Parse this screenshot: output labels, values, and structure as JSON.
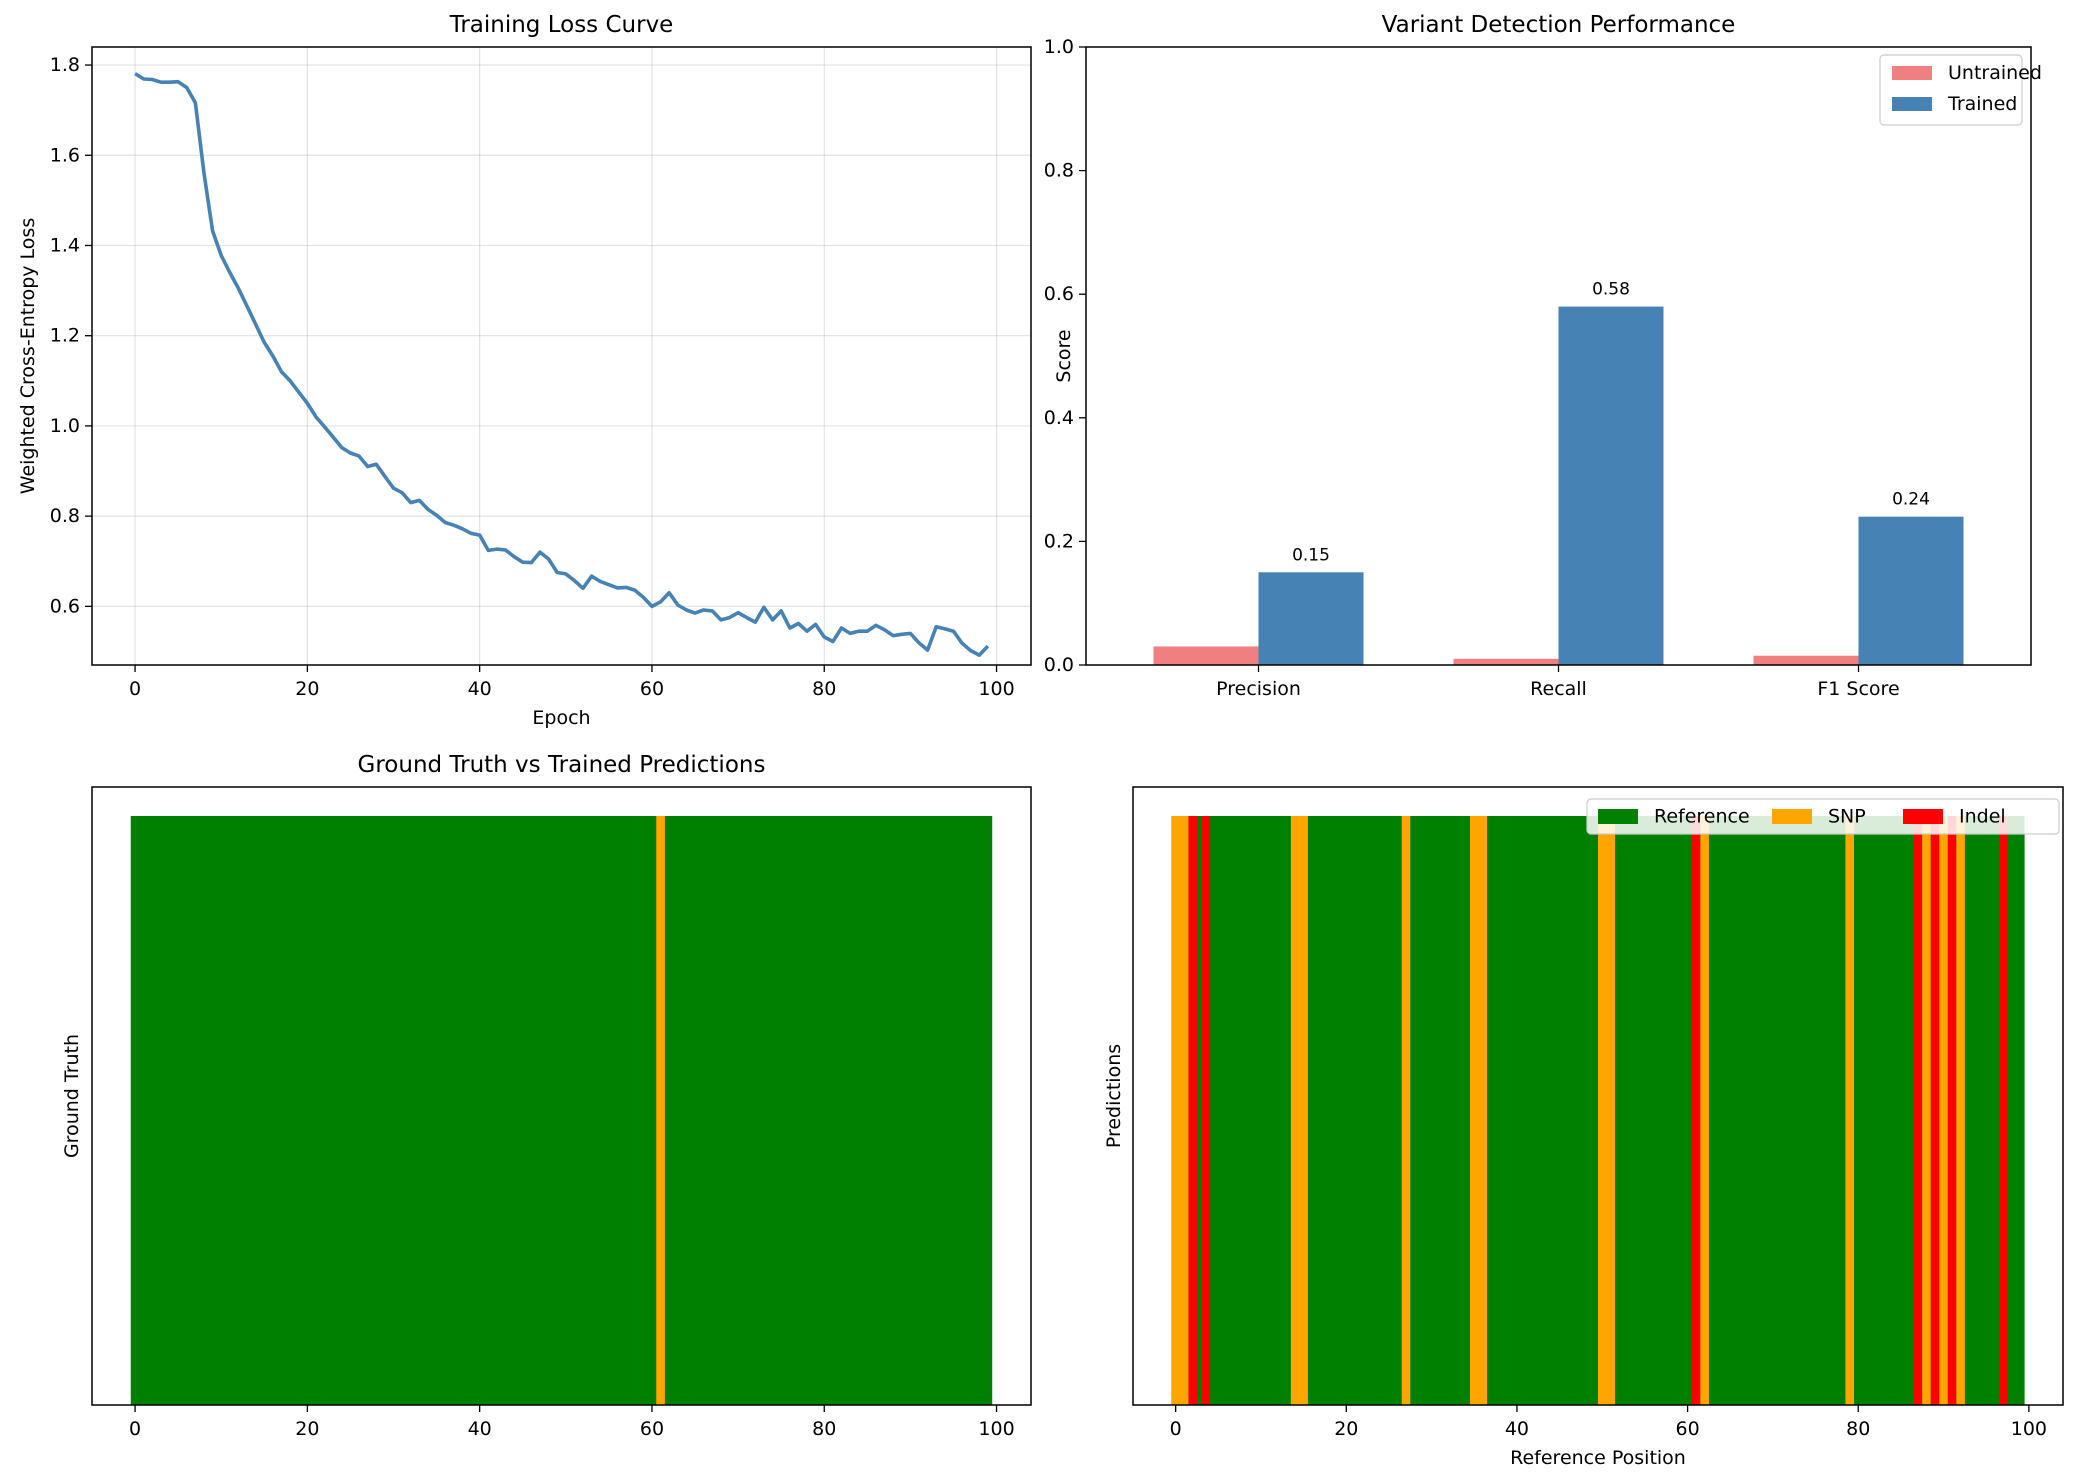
{
  "chart_data": [
    {
      "type": "line",
      "title": "Training Loss Curve",
      "xlabel": "Epoch",
      "ylabel": "Weighted Cross-Entropy Loss",
      "xlim": [
        -5,
        104
      ],
      "ylim": [
        0.47,
        1.84
      ],
      "xticks": [
        0,
        20,
        40,
        60,
        80,
        100
      ],
      "xtick_labels": [
        "0",
        "20",
        "40",
        "60",
        "80",
        "100"
      ],
      "yticks": [
        0.6,
        0.8,
        1.0,
        1.2,
        1.4,
        1.6,
        1.8
      ],
      "ytick_labels": [
        "0.6",
        "0.8",
        "1.0",
        "1.2",
        "1.4",
        "1.6",
        "1.8"
      ],
      "grid": true,
      "color": "#4682b4",
      "series": [
        {
          "x": [
            0,
            1,
            2,
            3,
            4,
            5,
            6,
            7,
            8,
            9,
            10,
            11,
            12,
            13,
            14,
            15,
            16,
            17,
            18,
            19,
            20,
            21,
            22,
            23,
            24,
            25,
            26,
            27,
            28,
            29,
            30,
            31,
            32,
            33,
            34,
            35,
            36,
            37,
            38,
            39,
            40,
            41,
            42,
            43,
            44,
            45,
            46,
            47,
            48,
            49,
            50,
            51,
            52,
            53,
            54,
            55,
            56,
            57,
            58,
            59,
            60,
            61,
            62,
            63,
            64,
            65,
            66,
            67,
            68,
            69,
            70,
            71,
            72,
            73,
            74,
            75,
            76,
            77,
            78,
            79,
            80,
            81,
            82,
            83,
            84,
            85,
            86,
            87,
            88,
            89,
            90,
            91,
            92,
            93,
            94,
            95,
            96,
            97,
            98,
            99
          ],
          "values": [
            1.781,
            1.769,
            1.768,
            1.762,
            1.762,
            1.763,
            1.75,
            1.716,
            1.56,
            1.432,
            1.378,
            1.34,
            1.305,
            1.265,
            1.225,
            1.185,
            1.155,
            1.12,
            1.1,
            1.075,
            1.05,
            1.02,
            0.998,
            0.975,
            0.952,
            0.94,
            0.933,
            0.91,
            0.915,
            0.888,
            0.862,
            0.852,
            0.83,
            0.835,
            0.815,
            0.802,
            0.786,
            0.78,
            0.772,
            0.762,
            0.758,
            0.724,
            0.727,
            0.725,
            0.71,
            0.698,
            0.697,
            0.72,
            0.705,
            0.675,
            0.672,
            0.657,
            0.64,
            0.667,
            0.655,
            0.648,
            0.641,
            0.642,
            0.636,
            0.62,
            0.6,
            0.61,
            0.63,
            0.603,
            0.592,
            0.585,
            0.592,
            0.59,
            0.57,
            0.575,
            0.586,
            0.575,
            0.565,
            0.598,
            0.57,
            0.59,
            0.552,
            0.562,
            0.545,
            0.56,
            0.532,
            0.522,
            0.552,
            0.54,
            0.545,
            0.545,
            0.558,
            0.548,
            0.535,
            0.538,
            0.54,
            0.519,
            0.503,
            0.555,
            0.55,
            0.545,
            0.518,
            0.502,
            0.492,
            0.512
          ]
        }
      ]
    },
    {
      "type": "bar",
      "title": "Variant Detection Performance",
      "xlabel": "",
      "ylabel": "Score",
      "ylim": [
        0,
        1.0
      ],
      "yticks": [
        0.0,
        0.2,
        0.4,
        0.6,
        0.8,
        1.0
      ],
      "ytick_labels": [
        "0.0",
        "0.2",
        "0.4",
        "0.6",
        "0.8",
        "1.0"
      ],
      "categories": [
        "Precision",
        "Recall",
        "F1 Score"
      ],
      "legend_position": "top-right",
      "series": [
        {
          "name": "Untrained",
          "values": [
            0.03,
            0.01,
            0.015
          ],
          "color": "#f08080",
          "labels": [
            "",
            "",
            ""
          ]
        },
        {
          "name": "Trained",
          "values": [
            0.15,
            0.58,
            0.24
          ],
          "color": "#4682b4",
          "labels": [
            "0.15",
            "0.58",
            "0.24"
          ]
        }
      ]
    },
    {
      "type": "heatmap",
      "title": "Ground Truth vs Trained Predictions",
      "xlabel": "",
      "ylabel": "Ground Truth",
      "xlim": [
        -5,
        104
      ],
      "xticks": [
        0,
        20,
        40,
        60,
        80,
        100
      ],
      "xtick_labels": [
        "0",
        "20",
        "40",
        "60",
        "80",
        "100"
      ],
      "positions": 100,
      "background": "Reference",
      "segments": [
        {
          "class": "SNP",
          "start": 61,
          "end": 62
        }
      ]
    },
    {
      "type": "heatmap",
      "title": "",
      "xlabel": "Reference Position",
      "ylabel": "Predictions",
      "xlim": [
        -5,
        104
      ],
      "xticks": [
        0,
        20,
        40,
        60,
        80,
        100
      ],
      "xtick_labels": [
        "0",
        "20",
        "40",
        "60",
        "80",
        "100"
      ],
      "positions": 100,
      "background": "Reference",
      "legend_position": "top-right",
      "classes": [
        {
          "name": "Reference",
          "color": "#008000"
        },
        {
          "name": "SNP",
          "color": "#ffa500"
        },
        {
          "name": "Indel",
          "color": "#ff0000"
        }
      ],
      "segments": [
        {
          "class": "SNP",
          "start": 0,
          "end": 2
        },
        {
          "class": "Indel",
          "start": 2,
          "end": 3
        },
        {
          "class": "Indel",
          "start": 3.5,
          "end": 4.5
        },
        {
          "class": "SNP",
          "start": 14,
          "end": 16
        },
        {
          "class": "SNP",
          "start": 27,
          "end": 28
        },
        {
          "class": "SNP",
          "start": 35,
          "end": 37
        },
        {
          "class": "SNP",
          "start": 50,
          "end": 52
        },
        {
          "class": "Indel",
          "start": 61,
          "end": 62
        },
        {
          "class": "SNP",
          "start": 62,
          "end": 63
        },
        {
          "class": "SNP",
          "start": 79,
          "end": 80
        },
        {
          "class": "Indel",
          "start": 87,
          "end": 88
        },
        {
          "class": "SNP",
          "start": 88,
          "end": 89
        },
        {
          "class": "Indel",
          "start": 89,
          "end": 90
        },
        {
          "class": "SNP",
          "start": 90,
          "end": 91
        },
        {
          "class": "Indel",
          "start": 91,
          "end": 92
        },
        {
          "class": "SNP",
          "start": 92,
          "end": 93
        },
        {
          "class": "Indel",
          "start": 97,
          "end": 98
        }
      ]
    }
  ]
}
